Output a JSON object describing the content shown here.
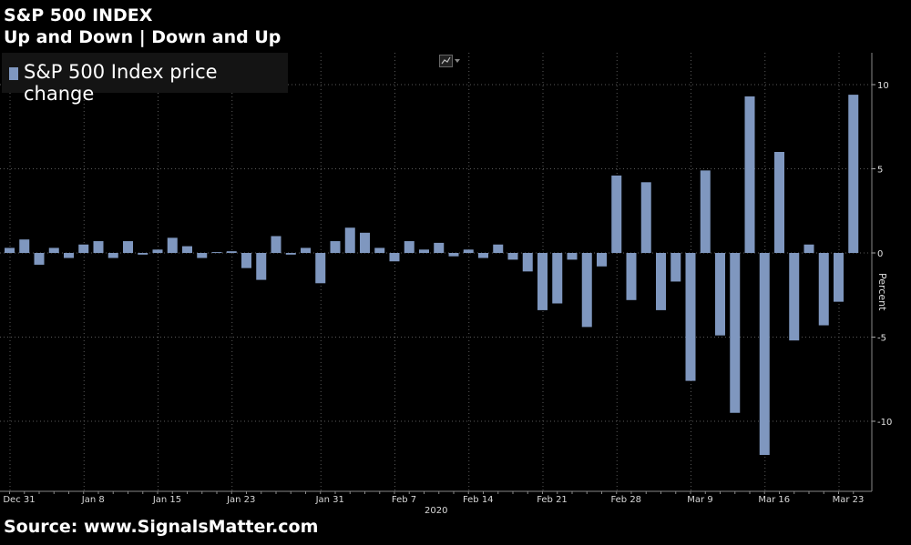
{
  "header": {
    "title": "S&P 500 INDEX",
    "subtitle": "Up and Down | Down and Up"
  },
  "legend": {
    "label": "S&P 500 Index price change",
    "color": "#7f97bf"
  },
  "toolbar": {
    "chart_icon": "line-chart-icon"
  },
  "footer": {
    "source": "Source: www.SignalsMatter.com"
  },
  "chart_data": {
    "type": "bar",
    "title": "S&P 500 INDEX",
    "subtitle": "Up and Down | Down and Up",
    "ylabel": "Percent",
    "year_label": "2020",
    "ylim": [
      -13,
      11.5
    ],
    "y_ticks": [
      10,
      5,
      0,
      -5,
      -10
    ],
    "x_tick_labels": [
      "Dec 31",
      "Jan 8",
      "Jan 15",
      "Jan 23",
      "Jan 31",
      "Feb 7",
      "Feb 14",
      "Feb 21",
      "Feb 28",
      "Mar 9",
      "Mar 16",
      "Mar 23"
    ],
    "x_tick_index": [
      0,
      5,
      10,
      15,
      21,
      26,
      31,
      36,
      41,
      46,
      51,
      56
    ],
    "bar_color": "#7f97bf",
    "grid": true,
    "legend_position": "top-left",
    "series": [
      {
        "name": "S&P 500 Index price change",
        "values": [
          0.3,
          0.8,
          -0.7,
          0.3,
          -0.3,
          0.5,
          0.7,
          -0.3,
          0.7,
          -0.1,
          0.2,
          0.9,
          0.4,
          -0.3,
          0.05,
          0.1,
          -0.9,
          -1.6,
          1.0,
          -0.1,
          0.3,
          -1.8,
          0.7,
          1.5,
          1.2,
          0.3,
          -0.5,
          0.7,
          0.2,
          0.6,
          -0.2,
          0.2,
          -0.3,
          0.5,
          -0.4,
          -1.1,
          -3.4,
          -3.0,
          -0.4,
          -4.4,
          -0.8,
          4.6,
          -2.8,
          4.2,
          -3.4,
          -1.7,
          -7.6,
          4.9,
          -4.9,
          -9.5,
          9.3,
          -12.0,
          6.0,
          -5.2,
          0.5,
          -4.3,
          -2.9,
          9.4
        ]
      }
    ]
  }
}
